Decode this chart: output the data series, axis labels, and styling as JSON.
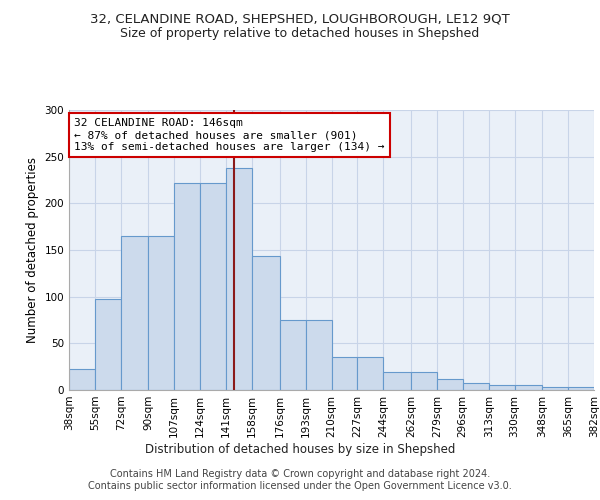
{
  "title1": "32, CELANDINE ROAD, SHEPSHED, LOUGHBOROUGH, LE12 9QT",
  "title2": "Size of property relative to detached houses in Shepshed",
  "xlabel_bottom": "Distribution of detached houses by size in Shepshed",
  "ylabel": "Number of detached properties",
  "footnote1": "Contains HM Land Registry data © Crown copyright and database right 2024.",
  "footnote2": "Contains public sector information licensed under the Open Government Licence v3.0.",
  "bin_edges": [
    38,
    55,
    72,
    90,
    107,
    124,
    141,
    158,
    176,
    193,
    210,
    227,
    244,
    262,
    279,
    296,
    313,
    330,
    348,
    365,
    382
  ],
  "bar_heights": [
    22,
    97,
    165,
    165,
    222,
    222,
    238,
    144,
    75,
    75,
    35,
    35,
    19,
    19,
    12,
    8,
    5,
    5,
    3,
    3
  ],
  "bar_color": "#ccdaec",
  "bar_edge_color": "#6699cc",
  "property_size": 146,
  "vline_color": "#8b1a1a",
  "annotation_text": "32 CELANDINE ROAD: 146sqm\n← 87% of detached houses are smaller (901)\n13% of semi-detached houses are larger (134) →",
  "annotation_box_color": "#ffffff",
  "annotation_box_edge_color": "#cc0000",
  "ylim": [
    0,
    300
  ],
  "yticks": [
    0,
    50,
    100,
    150,
    200,
    250,
    300
  ],
  "grid_color": "#c8d4e8",
  "bg_color": "#eaf0f8",
  "title1_fontsize": 9.5,
  "title2_fontsize": 9,
  "annotation_fontsize": 8,
  "tick_fontsize": 7.5,
  "ylabel_fontsize": 8.5,
  "xlabel_bottom_fontsize": 8.5,
  "footnote_fontsize": 7
}
